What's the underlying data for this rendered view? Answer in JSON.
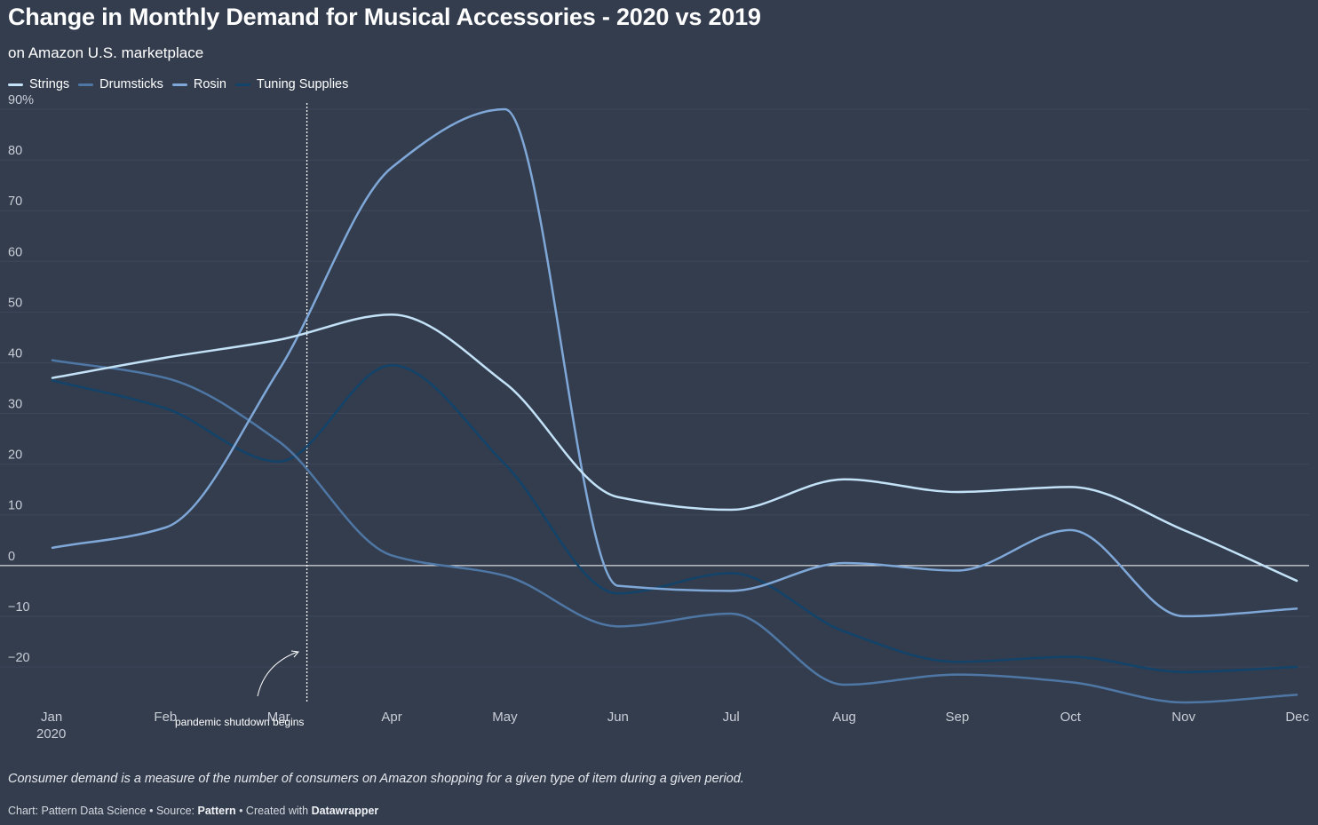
{
  "header": {
    "title": "Change in Monthly Demand for Musical Accessories - 2020 vs 2019",
    "subtitle": "on Amazon U.S. marketplace"
  },
  "colors": {
    "background": "#333d4e",
    "grid": "#3e485a",
    "zero_line": "#ffffff",
    "tick_text": "#c9cdd6",
    "annotation": "#ffffff"
  },
  "chart_data": {
    "type": "line",
    "x": [
      "Jan",
      "Feb",
      "Mar",
      "Apr",
      "May",
      "Jun",
      "Jul",
      "Aug",
      "Sep",
      "Oct",
      "Nov",
      "Dec"
    ],
    "x_tick_labels": [
      "Jan",
      "Feb",
      "Mar",
      "Apr",
      "May",
      "Jun",
      "Jul",
      "Aug",
      "Sep",
      "Oct",
      "Nov",
      "Dec"
    ],
    "x_year_label": "2020",
    "y_ticks": [
      -20,
      -10,
      0,
      10,
      20,
      30,
      40,
      50,
      60,
      70,
      80,
      90
    ],
    "y_tick_labels": [
      "−20",
      "−10",
      "0",
      "10",
      "20",
      "30",
      "40",
      "50",
      "60",
      "70",
      "80",
      "90%"
    ],
    "ylim": [
      -27,
      91
    ],
    "grid": true,
    "legend_position": "top-left",
    "series": [
      {
        "name": "Strings",
        "color": "#c3e2f7",
        "values": [
          37,
          41,
          44.5,
          49.5,
          36,
          13.5,
          11,
          17,
          14.5,
          15.5,
          7,
          -3
        ]
      },
      {
        "name": "Drumsticks",
        "color": "#4f77a5",
        "values": [
          40.5,
          37,
          24.5,
          2,
          -2,
          -12,
          -9.5,
          -23.5,
          -21.5,
          -23,
          -27,
          -25.5
        ]
      },
      {
        "name": "Rosin",
        "color": "#7fa8d8",
        "values": [
          3.5,
          7.5,
          38.5,
          78.5,
          90,
          -4,
          -5,
          0.5,
          -1,
          7,
          -10,
          -8.5
        ]
      },
      {
        "name": "Tuning Supplies",
        "color": "#12436a",
        "values": [
          36.5,
          31,
          20.5,
          39.5,
          20,
          -5.5,
          -1.5,
          -13,
          -19,
          -18,
          -21,
          -20
        ]
      }
    ],
    "annotations": [
      {
        "text": "pandemic shutdown begins",
        "x": "Mar"
      }
    ]
  },
  "footer": {
    "note": "Consumer demand is a measure of the number of consumers on Amazon shopping for a given type of item during a given period.",
    "credit_prefix": "Chart: Pattern Data Science • Source: ",
    "source_name": "Pattern",
    "credit_mid": " • Created with ",
    "tool_name": "Datawrapper"
  }
}
